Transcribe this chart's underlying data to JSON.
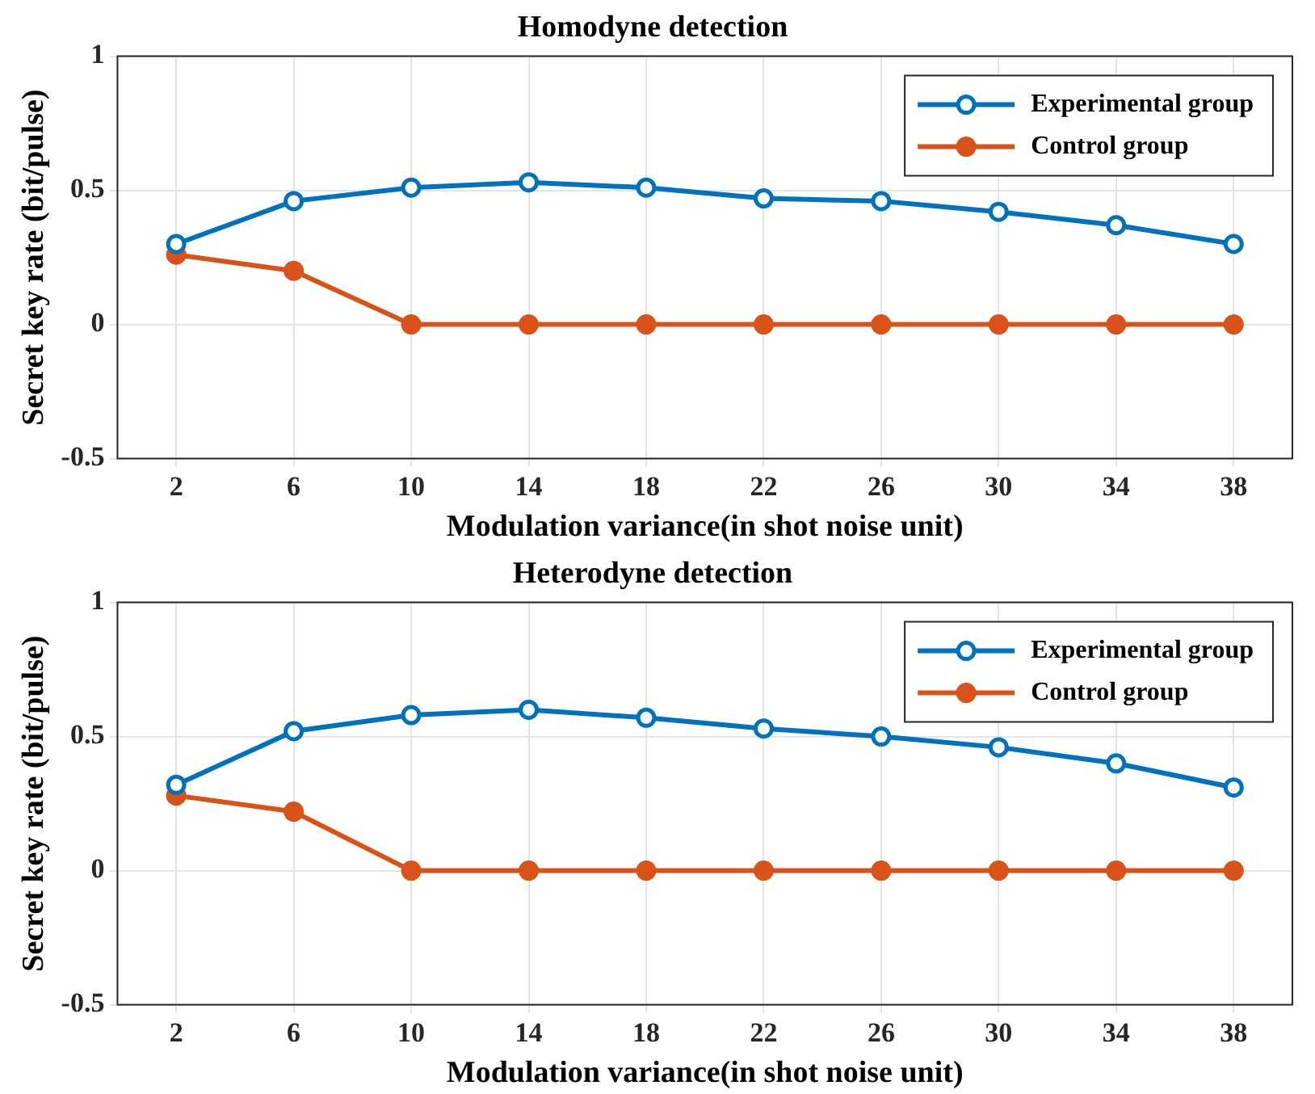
{
  "chart_data": [
    {
      "type": "line",
      "title": "Homodyne detection",
      "xlabel": "Modulation variance(in shot noise unit)",
      "ylabel": "Secret key rate (bit/pulse)",
      "x": [
        2,
        6,
        10,
        14,
        18,
        22,
        26,
        30,
        34,
        38
      ],
      "series": [
        {
          "name": "Experimental group",
          "color": "#0072bd",
          "values": [
            0.3,
            0.46,
            0.51,
            0.53,
            0.51,
            0.47,
            0.46,
            0.42,
            0.37,
            0.3
          ]
        },
        {
          "name": "Control group",
          "color": "#d95319",
          "values": [
            0.26,
            0.2,
            0,
            0,
            0,
            0,
            0,
            0,
            0,
            0
          ]
        }
      ],
      "xlim": [
        0,
        40
      ],
      "xticks": [
        2,
        6,
        10,
        14,
        18,
        22,
        26,
        30,
        34,
        38
      ],
      "ylim": [
        -0.5,
        1
      ],
      "yticks": [
        -0.5,
        0,
        0.5,
        1
      ],
      "grid": true,
      "legend": "top right",
      "marker": "circle"
    },
    {
      "type": "line",
      "title": "Heterodyne detection",
      "xlabel": "Modulation variance(in shot noise unit)",
      "ylabel": "Secret key rate (bit/pulse)",
      "x": [
        2,
        6,
        10,
        14,
        18,
        22,
        26,
        30,
        34,
        38
      ],
      "series": [
        {
          "name": "Experimental group",
          "color": "#0072bd",
          "values": [
            0.32,
            0.52,
            0.58,
            0.6,
            0.57,
            0.53,
            0.5,
            0.46,
            0.4,
            0.31
          ]
        },
        {
          "name": "Control group",
          "color": "#d95319",
          "values": [
            0.28,
            0.22,
            0,
            0,
            0,
            0,
            0,
            0,
            0,
            0
          ]
        }
      ],
      "xlim": [
        0,
        40
      ],
      "xticks": [
        2,
        6,
        10,
        14,
        18,
        22,
        26,
        30,
        34,
        38
      ],
      "ylim": [
        -0.5,
        1
      ],
      "yticks": [
        -0.5,
        0,
        0.5,
        1
      ],
      "grid": true,
      "legend": "top right",
      "marker": "circle"
    }
  ]
}
